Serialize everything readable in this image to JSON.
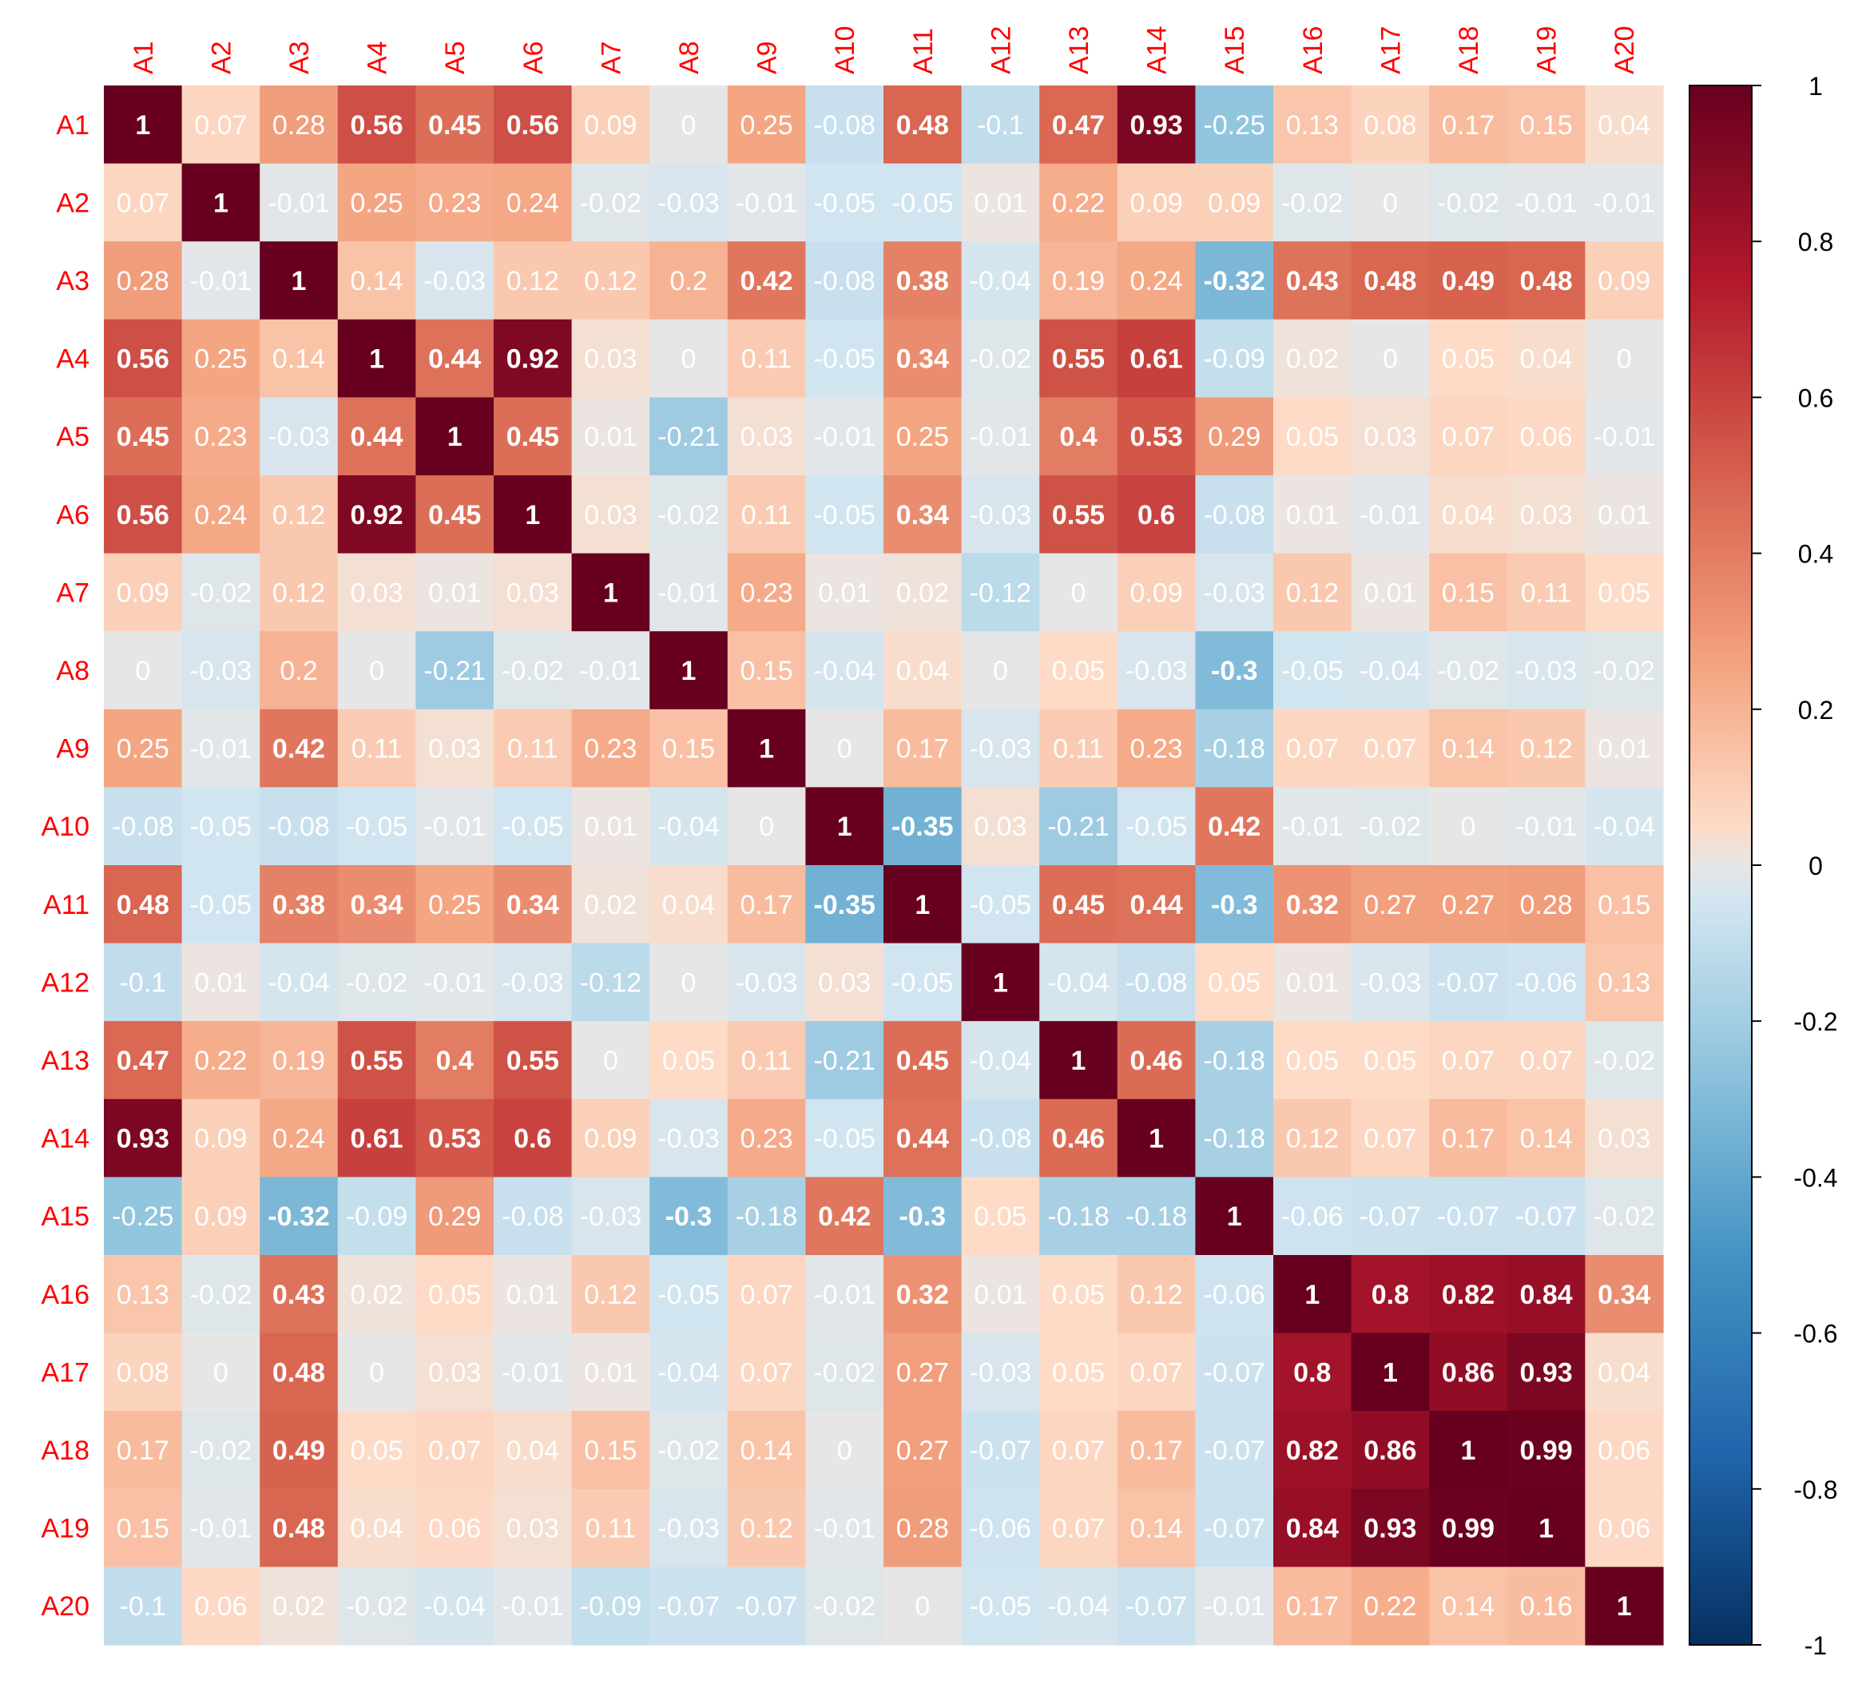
{
  "chart_data": {
    "type": "heatmap",
    "title": "",
    "xlabel": "",
    "ylabel": "",
    "variables": [
      "A1",
      "A2",
      "A3",
      "A4",
      "A5",
      "A6",
      "A7",
      "A8",
      "A9",
      "A10",
      "A11",
      "A12",
      "A13",
      "A14",
      "A15",
      "A16",
      "A17",
      "A18",
      "A19",
      "A20"
    ],
    "matrix": [
      [
        1,
        0.07,
        0.28,
        0.56,
        0.45,
        0.56,
        0.09,
        0,
        0.25,
        -0.08,
        0.48,
        -0.1,
        0.47,
        0.93,
        -0.25,
        0.13,
        0.08,
        0.17,
        0.15,
        0.04
      ],
      [
        0.07,
        1,
        -0.01,
        0.25,
        0.23,
        0.24,
        -0.02,
        -0.03,
        -0.01,
        -0.05,
        -0.05,
        0.01,
        0.22,
        0.09,
        0.09,
        -0.02,
        0,
        -0.02,
        -0.01,
        -0.01
      ],
      [
        0.28,
        -0.01,
        1,
        0.14,
        -0.03,
        0.12,
        0.12,
        0.2,
        0.42,
        -0.08,
        0.38,
        -0.04,
        0.19,
        0.24,
        -0.32,
        0.43,
        0.48,
        0.49,
        0.48,
        0.09
      ],
      [
        0.56,
        0.25,
        0.14,
        1,
        0.44,
        0.92,
        0.03,
        0,
        0.11,
        -0.05,
        0.34,
        -0.02,
        0.55,
        0.61,
        -0.09,
        0.02,
        0,
        0.05,
        0.04,
        0
      ],
      [
        0.45,
        0.23,
        -0.03,
        0.44,
        1,
        0.45,
        0.01,
        -0.21,
        0.03,
        -0.01,
        0.25,
        -0.01,
        0.4,
        0.53,
        0.29,
        0.05,
        0.03,
        0.07,
        0.06,
        -0.01
      ],
      [
        0.56,
        0.24,
        0.12,
        0.92,
        0.45,
        1,
        0.03,
        -0.02,
        0.11,
        -0.05,
        0.34,
        -0.03,
        0.55,
        0.6,
        -0.08,
        0.01,
        -0.01,
        0.04,
        0.03,
        0.01
      ],
      [
        0.09,
        -0.02,
        0.12,
        0.03,
        0.01,
        0.03,
        1,
        -0.01,
        0.23,
        0.01,
        0.02,
        -0.12,
        0,
        0.09,
        -0.03,
        0.12,
        0.01,
        0.15,
        0.11,
        0.05
      ],
      [
        0,
        -0.03,
        0.2,
        0,
        -0.21,
        -0.02,
        -0.01,
        1,
        0.15,
        -0.04,
        0.04,
        0,
        0.05,
        -0.03,
        -0.3,
        -0.05,
        -0.04,
        -0.02,
        -0.03,
        -0.02
      ],
      [
        0.25,
        -0.01,
        0.42,
        0.11,
        0.03,
        0.11,
        0.23,
        0.15,
        1,
        0,
        0.17,
        -0.03,
        0.11,
        0.23,
        -0.18,
        0.07,
        0.07,
        0.14,
        0.12,
        0.01
      ],
      [
        -0.08,
        -0.05,
        -0.08,
        -0.05,
        -0.01,
        -0.05,
        0.01,
        -0.04,
        0,
        1,
        -0.35,
        0.03,
        -0.21,
        -0.05,
        0.42,
        -0.01,
        -0.02,
        0,
        -0.01,
        -0.04
      ],
      [
        0.48,
        -0.05,
        0.38,
        0.34,
        0.25,
        0.34,
        0.02,
        0.04,
        0.17,
        -0.35,
        1,
        -0.05,
        0.45,
        0.44,
        -0.3,
        0.32,
        0.27,
        0.27,
        0.28,
        0.15
      ],
      [
        -0.1,
        0.01,
        -0.04,
        -0.02,
        -0.01,
        -0.03,
        -0.12,
        0,
        -0.03,
        0.03,
        -0.05,
        1,
        -0.04,
        -0.08,
        0.05,
        0.01,
        -0.03,
        -0.07,
        -0.06,
        0.13
      ],
      [
        0.47,
        0.22,
        0.19,
        0.55,
        0.4,
        0.55,
        0,
        0.05,
        0.11,
        -0.21,
        0.45,
        -0.04,
        1,
        0.46,
        -0.18,
        0.05,
        0.05,
        0.07,
        0.07,
        -0.02
      ],
      [
        0.93,
        0.09,
        0.24,
        0.61,
        0.53,
        0.6,
        0.09,
        -0.03,
        0.23,
        -0.05,
        0.44,
        -0.08,
        0.46,
        1,
        -0.18,
        0.12,
        0.07,
        0.17,
        0.14,
        0.03
      ],
      [
        -0.25,
        0.09,
        -0.32,
        -0.09,
        0.29,
        -0.08,
        -0.03,
        -0.3,
        -0.18,
        0.42,
        -0.3,
        0.05,
        -0.18,
        -0.18,
        1,
        -0.06,
        -0.07,
        -0.07,
        -0.07,
        -0.02
      ],
      [
        0.13,
        -0.02,
        0.43,
        0.02,
        0.05,
        0.01,
        0.12,
        -0.05,
        0.07,
        -0.01,
        0.32,
        0.01,
        0.05,
        0.12,
        -0.06,
        1,
        0.8,
        0.82,
        0.84,
        0.34
      ],
      [
        0.08,
        0,
        0.48,
        0,
        0.03,
        -0.01,
        0.01,
        -0.04,
        0.07,
        -0.02,
        0.27,
        -0.03,
        0.05,
        0.07,
        -0.07,
        0.8,
        1,
        0.86,
        0.93,
        0.04
      ],
      [
        0.17,
        -0.02,
        0.49,
        0.05,
        0.07,
        0.04,
        0.15,
        -0.02,
        0.14,
        0,
        0.27,
        -0.07,
        0.07,
        0.17,
        -0.07,
        0.82,
        0.86,
        1,
        0.99,
        0.06
      ],
      [
        0.15,
        -0.01,
        0.48,
        0.04,
        0.06,
        0.03,
        0.11,
        -0.03,
        0.12,
        -0.01,
        0.28,
        -0.06,
        0.07,
        0.14,
        -0.07,
        0.84,
        0.93,
        0.99,
        1,
        0.06
      ],
      [
        -0.1,
        0.06,
        0.02,
        -0.02,
        -0.04,
        -0.01,
        -0.09,
        -0.07,
        -0.07,
        -0.02,
        0,
        -0.05,
        -0.04,
        -0.07,
        -0.01,
        0.17,
        0.22,
        0.14,
        0.16,
        1
      ]
    ],
    "value_range": [
      -1,
      1
    ],
    "colorbar": {
      "ticks": [
        1,
        0.8,
        0.6,
        0.4,
        0.2,
        0,
        -0.2,
        -0.4,
        -0.6,
        -0.8,
        -1
      ],
      "labels": [
        "1",
        "0.8",
        "0.6",
        "0.4",
        "0.2",
        "0",
        "-0.2",
        "-0.4",
        "-0.6",
        "-0.8",
        "-1"
      ],
      "placement": "right"
    },
    "colors": {
      "negative_end": "#053061",
      "midpoint": "#e6e6e6",
      "positive_end": "#67001f",
      "label_color": "#ff0000",
      "cell_text": "#ffffff"
    },
    "grid": false
  }
}
